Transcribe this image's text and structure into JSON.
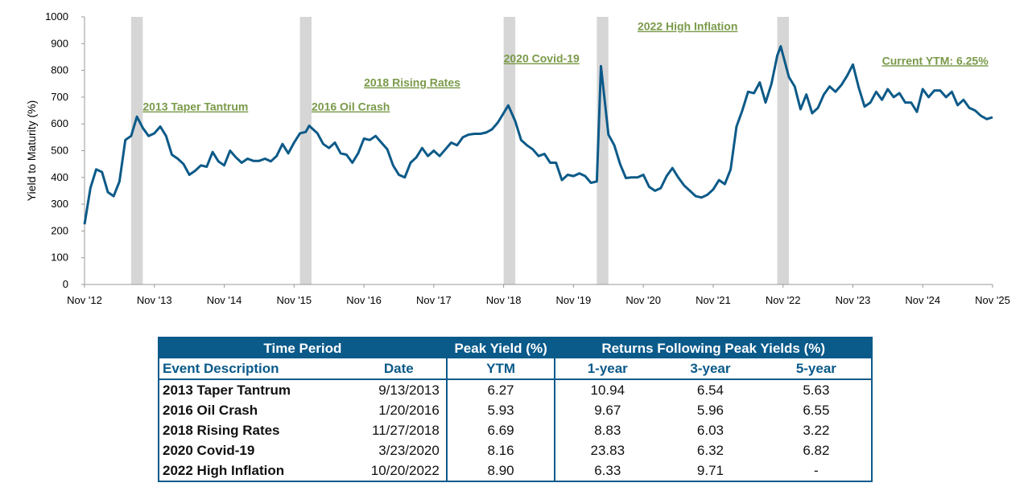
{
  "chart_data": {
    "type": "line",
    "ylabel": "Yield to Maturity (%)",
    "ylim": [
      0,
      1000
    ],
    "yticks": [
      "0",
      "100",
      "200",
      "300",
      "400",
      "500",
      "600",
      "700",
      "800",
      "900",
      "1000"
    ],
    "xticks": [
      "Nov '12",
      "Nov '13",
      "Nov '14",
      "Nov '15",
      "Nov '16",
      "Nov '17",
      "Nov '18",
      "Nov '19",
      "Nov '20",
      "Nov '21",
      "Nov '22",
      "Nov '23",
      "Nov '24",
      "Nov '25"
    ],
    "x_start_year": 2012.833,
    "x_end_year": 2025.833,
    "series": [
      {
        "name": "Yield to Maturity",
        "color": "#0c5a88",
        "points": [
          [
            2012.833,
            225
          ],
          [
            2012.917,
            360
          ],
          [
            2013.0,
            430
          ],
          [
            2013.083,
            420
          ],
          [
            2013.167,
            345
          ],
          [
            2013.25,
            330
          ],
          [
            2013.333,
            385
          ],
          [
            2013.417,
            540
          ],
          [
            2013.5,
            555
          ],
          [
            2013.583,
            627
          ],
          [
            2013.667,
            585
          ],
          [
            2013.75,
            555
          ],
          [
            2013.833,
            565
          ],
          [
            2013.917,
            590
          ],
          [
            2014.0,
            555
          ],
          [
            2014.083,
            485
          ],
          [
            2014.167,
            470
          ],
          [
            2014.25,
            450
          ],
          [
            2014.333,
            410
          ],
          [
            2014.417,
            425
          ],
          [
            2014.5,
            445
          ],
          [
            2014.583,
            440
          ],
          [
            2014.667,
            495
          ],
          [
            2014.75,
            460
          ],
          [
            2014.833,
            445
          ],
          [
            2014.917,
            500
          ],
          [
            2015.0,
            475
          ],
          [
            2015.083,
            455
          ],
          [
            2015.167,
            470
          ],
          [
            2015.25,
            462
          ],
          [
            2015.333,
            462
          ],
          [
            2015.417,
            470
          ],
          [
            2015.5,
            460
          ],
          [
            2015.583,
            480
          ],
          [
            2015.667,
            525
          ],
          [
            2015.75,
            490
          ],
          [
            2015.833,
            530
          ],
          [
            2015.917,
            565
          ],
          [
            2016.0,
            570
          ],
          [
            2016.05,
            593
          ],
          [
            2016.167,
            565
          ],
          [
            2016.25,
            525
          ],
          [
            2016.333,
            510
          ],
          [
            2016.417,
            530
          ],
          [
            2016.5,
            490
          ],
          [
            2016.583,
            485
          ],
          [
            2016.667,
            455
          ],
          [
            2016.75,
            490
          ],
          [
            2016.833,
            545
          ],
          [
            2016.917,
            540
          ],
          [
            2017.0,
            555
          ],
          [
            2017.083,
            530
          ],
          [
            2017.167,
            505
          ],
          [
            2017.25,
            445
          ],
          [
            2017.333,
            410
          ],
          [
            2017.417,
            400
          ],
          [
            2017.5,
            455
          ],
          [
            2017.583,
            475
          ],
          [
            2017.667,
            510
          ],
          [
            2017.75,
            480
          ],
          [
            2017.833,
            500
          ],
          [
            2017.917,
            480
          ],
          [
            2018.0,
            505
          ],
          [
            2018.083,
            530
          ],
          [
            2018.167,
            520
          ],
          [
            2018.25,
            550
          ],
          [
            2018.333,
            560
          ],
          [
            2018.417,
            563
          ],
          [
            2018.5,
            563
          ],
          [
            2018.583,
            568
          ],
          [
            2018.667,
            580
          ],
          [
            2018.75,
            605
          ],
          [
            2018.9,
            669
          ],
          [
            2019.0,
            610
          ],
          [
            2019.083,
            540
          ],
          [
            2019.167,
            520
          ],
          [
            2019.25,
            505
          ],
          [
            2019.333,
            480
          ],
          [
            2019.417,
            488
          ],
          [
            2019.5,
            455
          ],
          [
            2019.583,
            455
          ],
          [
            2019.667,
            390
          ],
          [
            2019.75,
            410
          ],
          [
            2019.833,
            405
          ],
          [
            2019.917,
            415
          ],
          [
            2020.0,
            405
          ],
          [
            2020.083,
            380
          ],
          [
            2020.167,
            385
          ],
          [
            2020.226,
            816
          ],
          [
            2020.333,
            560
          ],
          [
            2020.417,
            520
          ],
          [
            2020.5,
            450
          ],
          [
            2020.583,
            398
          ],
          [
            2020.667,
            400
          ],
          [
            2020.75,
            400
          ],
          [
            2020.833,
            410
          ],
          [
            2020.917,
            365
          ],
          [
            2021.0,
            350
          ],
          [
            2021.083,
            360
          ],
          [
            2021.167,
            405
          ],
          [
            2021.25,
            435
          ],
          [
            2021.333,
            400
          ],
          [
            2021.417,
            370
          ],
          [
            2021.5,
            350
          ],
          [
            2021.583,
            330
          ],
          [
            2021.667,
            325
          ],
          [
            2021.75,
            335
          ],
          [
            2021.833,
            355
          ],
          [
            2021.917,
            390
          ],
          [
            2022.0,
            375
          ],
          [
            2022.083,
            430
          ],
          [
            2022.167,
            590
          ],
          [
            2022.25,
            650
          ],
          [
            2022.333,
            720
          ],
          [
            2022.417,
            715
          ],
          [
            2022.5,
            755
          ],
          [
            2022.583,
            680
          ],
          [
            2022.667,
            750
          ],
          [
            2022.75,
            855
          ],
          [
            2022.8,
            890
          ],
          [
            2022.917,
            775
          ],
          [
            2023.0,
            740
          ],
          [
            2023.083,
            655
          ],
          [
            2023.167,
            710
          ],
          [
            2023.25,
            640
          ],
          [
            2023.333,
            660
          ],
          [
            2023.417,
            710
          ],
          [
            2023.5,
            740
          ],
          [
            2023.583,
            720
          ],
          [
            2023.667,
            745
          ],
          [
            2023.75,
            780
          ],
          [
            2023.833,
            822
          ],
          [
            2023.917,
            735
          ],
          [
            2024.0,
            665
          ],
          [
            2024.083,
            680
          ],
          [
            2024.167,
            720
          ],
          [
            2024.25,
            690
          ],
          [
            2024.333,
            730
          ],
          [
            2024.417,
            700
          ],
          [
            2024.5,
            715
          ],
          [
            2024.583,
            680
          ],
          [
            2024.667,
            680
          ],
          [
            2024.75,
            645
          ],
          [
            2024.833,
            730
          ],
          [
            2024.917,
            700
          ],
          [
            2025.0,
            725
          ],
          [
            2025.083,
            725
          ],
          [
            2025.167,
            700
          ],
          [
            2025.25,
            720
          ],
          [
            2025.333,
            670
          ],
          [
            2025.417,
            690
          ],
          [
            2025.5,
            660
          ],
          [
            2025.583,
            650
          ],
          [
            2025.667,
            630
          ],
          [
            2025.75,
            618
          ],
          [
            2025.833,
            625
          ]
        ]
      }
    ],
    "shaded_periods": [
      {
        "start": 2013.5,
        "end": 2013.667
      },
      {
        "start": 2015.917,
        "end": 2016.083
      },
      {
        "start": 2018.833,
        "end": 2019.0
      },
      {
        "start": 2020.167,
        "end": 2020.333
      },
      {
        "start": 2022.75,
        "end": 2022.917
      }
    ],
    "annotations": [
      {
        "text": "2013 Taper Tantrum",
        "x": 2013.667,
        "y": 650
      },
      {
        "text": "2016 Oil Crash",
        "x": 2016.083,
        "y": 650
      },
      {
        "text": "2018 Rising Rates",
        "x": 2016.833,
        "y": 740
      },
      {
        "text": "2020 Covid-19",
        "x": 2018.833,
        "y": 830
      },
      {
        "text": "2022 High Inflation",
        "x": 2020.75,
        "y": 950
      },
      {
        "text": "Current YTM: 6.25%",
        "x": 2024.25,
        "y": 822
      }
    ]
  },
  "table": {
    "header1": {
      "time_period": "Time Period",
      "peak_yield": "Peak Yield (%)",
      "returns": "Returns Following Peak Yields (%)"
    },
    "header2": {
      "event": "Event Description",
      "date": "Date",
      "ytm": "YTM",
      "r1": "1-year",
      "r3": "3-year",
      "r5": "5-year"
    },
    "rows": [
      {
        "event": "2013 Taper Tantrum",
        "date": "9/13/2013",
        "ytm": "6.27",
        "r1": "10.94",
        "r3": "6.54",
        "r5": "5.63"
      },
      {
        "event": "2016 Oil Crash",
        "date": "1/20/2016",
        "ytm": "5.93",
        "r1": "9.67",
        "r3": "5.96",
        "r5": "6.55"
      },
      {
        "event": "2018 Rising Rates",
        "date": "11/27/2018",
        "ytm": "6.69",
        "r1": "8.83",
        "r3": "6.03",
        "r5": "3.22"
      },
      {
        "event": "2020 Covid-19",
        "date": "3/23/2020",
        "ytm": "8.16",
        "r1": "23.83",
        "r3": "6.32",
        "r5": "6.82"
      },
      {
        "event": "2022 High Inflation",
        "date": "10/20/2022",
        "ytm": "8.90",
        "r1": "6.33",
        "r3": "9.71",
        "r5": "-"
      }
    ]
  }
}
